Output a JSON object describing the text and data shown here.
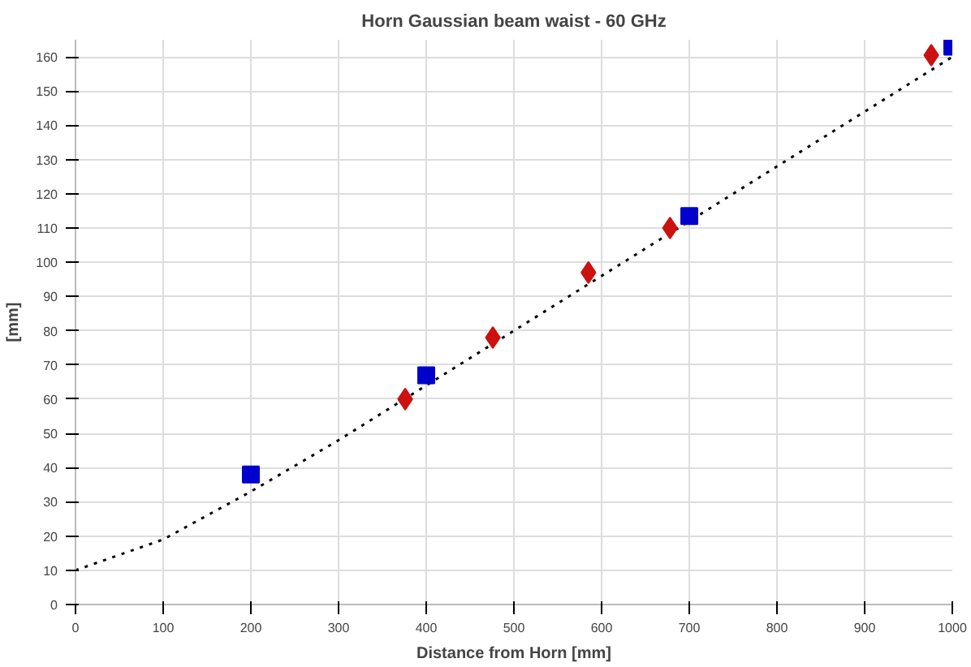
{
  "chart_data": {
    "type": "scatter",
    "title": "Horn Gaussian beam waist - 60 GHz",
    "xlabel": "Distance from Horn [mm]",
    "ylabel": "[mm]",
    "xlim": [
      0,
      1000
    ],
    "xticks": [
      0,
      100,
      200,
      300,
      400,
      500,
      600,
      700,
      800,
      900,
      1000
    ],
    "ylim": [
      0,
      165
    ],
    "yticks": [
      0,
      10,
      20,
      30,
      40,
      50,
      60,
      70,
      80,
      90,
      100,
      110,
      120,
      130,
      140,
      150,
      160
    ],
    "grid": true,
    "series": [
      {
        "type": "line",
        "color": "#000000",
        "line_style": "dotted",
        "marker": "none",
        "x": [
          0,
          100,
          200,
          300,
          400,
          500,
          600,
          700,
          800,
          900,
          1000
        ],
        "values": [
          10,
          19,
          33,
          48,
          64,
          80,
          96,
          112,
          128,
          144,
          160
        ]
      },
      {
        "color": "#0000cc",
        "marker": "square",
        "x": [
          200,
          400,
          700,
          1000
        ],
        "values": [
          38,
          67,
          113.5,
          163
        ]
      },
      {
        "color": "#cc1111",
        "marker": "diamond",
        "x": [
          376,
          476,
          585,
          678,
          976
        ],
        "values": [
          60,
          78,
          97,
          110,
          160.5
        ]
      }
    ]
  }
}
